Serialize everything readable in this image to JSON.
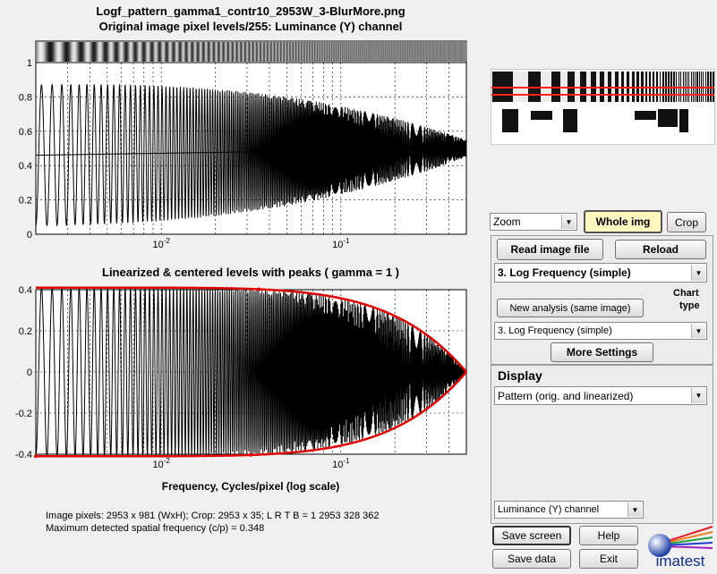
{
  "window": {
    "title_line1": "Logf_pattern_gamma1_contr10_2953W_3-BlurMore.png",
    "title_line2": "Original image pixel levels/255:  Luminance (Y) channel"
  },
  "chart_data": [
    {
      "type": "line",
      "title": "Logf_pattern_gamma1_contr10_2953W_3-BlurMore.png / Original image pixel levels/255:  Luminance (Y) channel",
      "x_scale": "log",
      "xlim": [
        0.002,
        0.5
      ],
      "ylim": [
        0,
        1
      ],
      "yticks": [
        "0",
        "0.2",
        "0.4",
        "0.6",
        "0.8",
        "1"
      ],
      "xticks": [
        "10^-2",
        "10^-1"
      ],
      "grid": true,
      "series": [
        {
          "description_values": {
            "mean_level_start": 0.46,
            "mean_level_end": 0.5,
            "peak_start": 0.9,
            "trough_start": 0.08,
            "peak_end": 0.55,
            "trough_end": 0.45
          }
        }
      ]
    },
    {
      "type": "line",
      "title": "Linearized & centered levels with peaks ( gamma = 1 )",
      "xlabel": "Frequency, Cycles/pixel (log scale)",
      "x_scale": "log",
      "xlim": [
        0.002,
        0.5
      ],
      "ylim": [
        -0.4,
        0.4
      ],
      "yticks": [
        "-0.4",
        "-0.2",
        "0",
        "0.2",
        "0.4"
      ],
      "xticks": [
        "10^-2",
        "10^-1"
      ],
      "grid": true,
      "series": [
        {
          "amplitude_start": 0.41,
          "amplitude_at_0_1": 0.34,
          "amplitude_end": 0.0,
          "peak_color": "#e00000"
        }
      ]
    }
  ],
  "info": {
    "line1": "Image pixels: 2953 x 981 (WxH);   Crop: 2953 x 35;   L R T B = 1 2953 328 362",
    "line2": "Maximum detected spatial frequency (c/p) = 0.348"
  },
  "controls": {
    "zoom_select": "Zoom",
    "whole_img_label": "Whole img",
    "crop_label": "Crop",
    "read_image_label": "Read image file",
    "reload_label": "Reload",
    "chart_select": "3. Log Frequency (simple)",
    "new_analysis_label": "New analysis (same image)",
    "chart_type_label_1": "Chart",
    "chart_type_label_2": "type",
    "chart_type_select": "3. Log Frequency (simple)",
    "more_settings_label": "More Settings",
    "display_label": "Display",
    "display_select": "Pattern (orig. and linearized)",
    "channel_select": "Luminance (Y) channel",
    "save_screen_label": "Save screen",
    "help_label": "Help",
    "save_data_label": "Save data",
    "exit_label": "Exit",
    "logo_text": "imatest"
  },
  "colors": {
    "peak_marker": "#e00000",
    "highlight_button": "#fff6c0",
    "logo_text": "#0f2d8c"
  }
}
